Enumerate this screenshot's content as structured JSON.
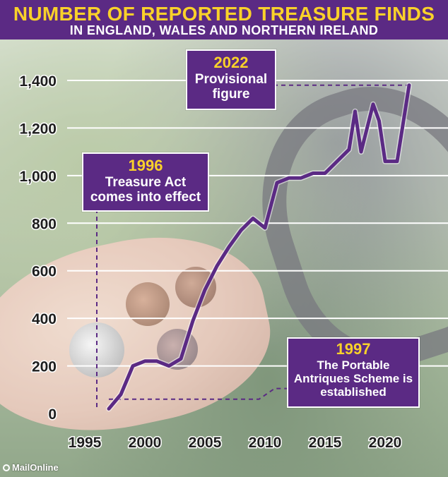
{
  "header": {
    "title": "NUMBER OF REPORTED TREASURE FINDS",
    "subtitle": "IN ENGLAND, WALES AND NORTHERN IRELAND"
  },
  "annotations": [
    {
      "id": "c2022",
      "year": "2022",
      "text": "Provisional figure"
    },
    {
      "id": "c1996",
      "year": "1996",
      "text": "Treasure Act comes into effect"
    },
    {
      "id": "c1997",
      "year": "1997",
      "text": "The Portable Antriques Scheme is established"
    }
  ],
  "footer": {
    "source": "MailOnline"
  },
  "colors": {
    "accent": "#5b2a84",
    "highlight": "#f9d12a",
    "line": "#5b2a84",
    "grid": "#ffffff"
  },
  "chart_data": {
    "type": "line",
    "title": "NUMBER OF REPORTED TREASURE FINDS",
    "subtitle": "IN ENGLAND, WALES AND NORTHERN IRELAND",
    "xlabel": "",
    "ylabel": "",
    "xlim": [
      1995,
      2022
    ],
    "ylim": [
      0,
      1400
    ],
    "xticks": [
      1995,
      2000,
      2005,
      2010,
      2015,
      2020
    ],
    "xtick_labels": [
      "1995",
      "2000",
      "2005",
      "2010",
      "2015",
      "2020"
    ],
    "yticks": [
      0,
      200,
      400,
      600,
      800,
      1000,
      1200,
      1400
    ],
    "ytick_labels": [
      "0",
      "200",
      "400",
      "600",
      "800",
      "1,000",
      "1,200",
      "1,400"
    ],
    "grid": true,
    "series": [
      {
        "x": [
          1997,
          1998,
          1999,
          2000,
          2001,
          2002,
          2003,
          2004,
          2005,
          2006,
          2007,
          2008,
          2009,
          2010,
          2011,
          2012,
          2013,
          2014,
          2015,
          2016,
          2017,
          2017.5,
          2018,
          2019,
          2019.5,
          2020,
          2021,
          2022
        ],
        "values": [
          20,
          80,
          200,
          220,
          220,
          200,
          230,
          390,
          520,
          620,
          700,
          770,
          820,
          780,
          970,
          990,
          990,
          1010,
          1010,
          1060,
          1110,
          1270,
          1100,
          1300,
          1230,
          1060,
          1060,
          1380
        ]
      }
    ]
  }
}
